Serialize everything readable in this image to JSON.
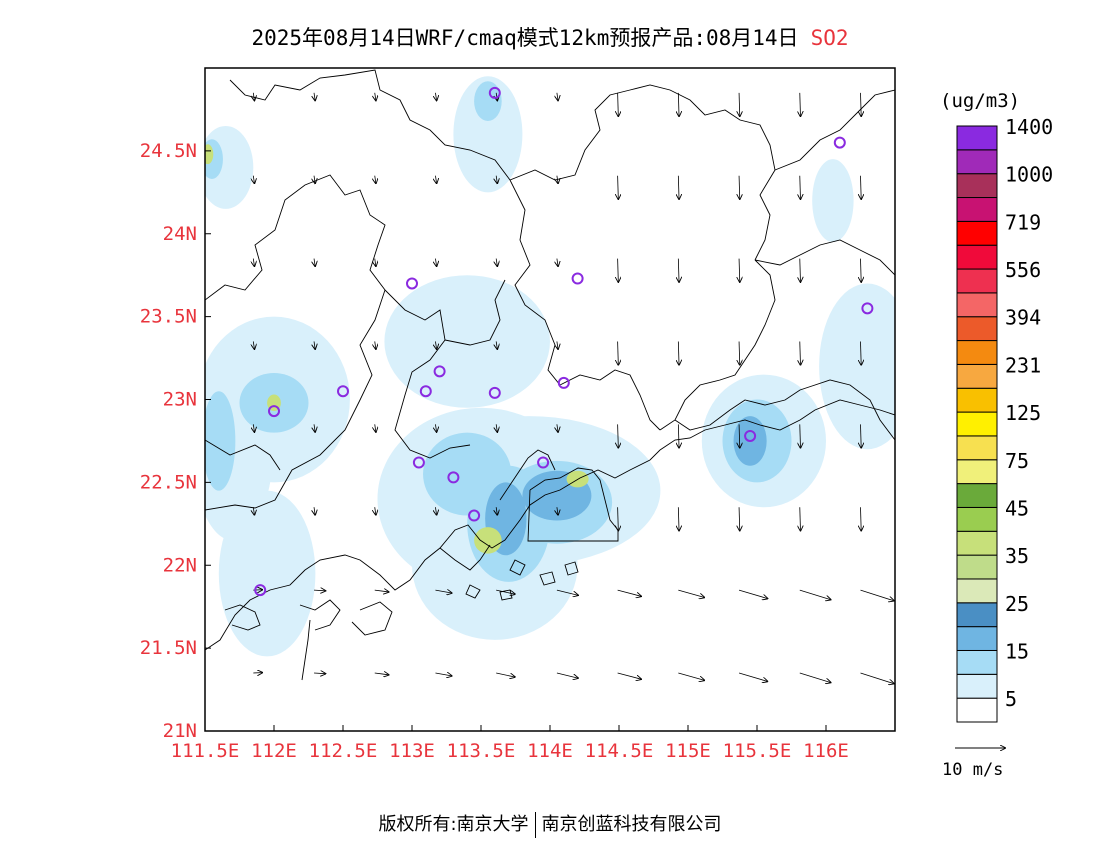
{
  "title": {
    "main": "2025年08月14日WRF/cmaq模式12km预报产品:08月14日",
    "species": "SO2"
  },
  "axes": {
    "x_ticks": [
      "111.5E",
      "112E",
      "112.5E",
      "113E",
      "113.5E",
      "114E",
      "114.5E",
      "115E",
      "115.5E",
      "116E"
    ],
    "y_ticks": [
      "24.5N",
      "24N",
      "23.5N",
      "23N",
      "22.5N",
      "22N",
      "21.5N",
      "21N"
    ],
    "tick_color": "#e8343c",
    "lon_range": [
      111.5,
      116.5
    ],
    "lat_range": [
      21,
      25
    ]
  },
  "colorbar": {
    "unit": "(ug/m3)",
    "labels": [
      "5",
      "15",
      "25",
      "35",
      "45",
      "75",
      "125",
      "231",
      "394",
      "556",
      "719",
      "1000",
      "1400"
    ],
    "colors": [
      "#ffffff",
      "#d9f0fb",
      "#a6dcf5",
      "#6fb5e2",
      "#4a8fc4",
      "#dbe9b8",
      "#bfdc8a",
      "#c7e07a",
      "#9acd50",
      "#6aaa3a",
      "#f0f07a",
      "#f7e050",
      "#fff000",
      "#f9c000",
      "#f7a840",
      "#f48a10",
      "#ec5a2a",
      "#f46666",
      "#ee3050",
      "#f00a3a",
      "#ff0000",
      "#c81272",
      "#a8305a",
      "#a02ab8",
      "#8a2ae0"
    ]
  },
  "wind_reference": {
    "label": "10 m/s"
  },
  "copyright": {
    "left": "版权所有:南京大学",
    "right": "南京创蓝科技有限公司"
  },
  "stations": [
    {
      "lon": 113.6,
      "lat": 24.85
    },
    {
      "lon": 116.1,
      "lat": 24.55
    },
    {
      "lon": 113.0,
      "lat": 23.7
    },
    {
      "lon": 114.2,
      "lat": 23.73
    },
    {
      "lon": 116.3,
      "lat": 23.55
    },
    {
      "lon": 113.2,
      "lat": 23.17
    },
    {
      "lon": 112.5,
      "lat": 23.05
    },
    {
      "lon": 113.1,
      "lat": 23.05
    },
    {
      "lon": 113.6,
      "lat": 23.04
    },
    {
      "lon": 114.1,
      "lat": 23.1
    },
    {
      "lon": 112.0,
      "lat": 22.93
    },
    {
      "lon": 115.45,
      "lat": 22.78
    },
    {
      "lon": 113.05,
      "lat": 22.62
    },
    {
      "lon": 113.3,
      "lat": 22.53
    },
    {
      "lon": 113.95,
      "lat": 22.62
    },
    {
      "lon": 113.45,
      "lat": 22.3
    },
    {
      "lon": 111.9,
      "lat": 21.85
    }
  ],
  "so2_patches": [
    {
      "lon": 113.5,
      "lat": 22.4,
      "rx": 0.75,
      "ry": 0.55,
      "level": 1
    },
    {
      "lon": 113.85,
      "lat": 22.45,
      "rx": 0.95,
      "ry": 0.45,
      "level": 1
    },
    {
      "lon": 113.6,
      "lat": 22.0,
      "rx": 0.6,
      "ry": 0.45,
      "level": 1
    },
    {
      "lon": 115.55,
      "lat": 22.75,
      "rx": 0.45,
      "ry": 0.4,
      "level": 1
    },
    {
      "lon": 112.0,
      "lat": 23.0,
      "rx": 0.55,
      "ry": 0.5,
      "level": 1
    },
    {
      "lon": 111.7,
      "lat": 22.75,
      "rx": 0.3,
      "ry": 0.6,
      "level": 1
    },
    {
      "lon": 111.95,
      "lat": 21.95,
      "rx": 0.35,
      "ry": 0.5,
      "level": 1
    },
    {
      "lon": 113.55,
      "lat": 24.6,
      "rx": 0.25,
      "ry": 0.35,
      "level": 1
    },
    {
      "lon": 113.4,
      "lat": 23.35,
      "rx": 0.6,
      "ry": 0.4,
      "level": 1
    },
    {
      "lon": 116.3,
      "lat": 23.2,
      "rx": 0.35,
      "ry": 0.5,
      "level": 1
    },
    {
      "lon": 116.05,
      "lat": 24.2,
      "rx": 0.15,
      "ry": 0.25,
      "level": 1
    },
    {
      "lon": 111.65,
      "lat": 24.4,
      "rx": 0.2,
      "ry": 0.25,
      "level": 1
    },
    {
      "lon": 113.4,
      "lat": 22.55,
      "rx": 0.32,
      "ry": 0.25,
      "level": 2
    },
    {
      "lon": 113.7,
      "lat": 22.25,
      "rx": 0.3,
      "ry": 0.35,
      "level": 2
    },
    {
      "lon": 114.05,
      "lat": 22.38,
      "rx": 0.4,
      "ry": 0.25,
      "level": 2
    },
    {
      "lon": 115.5,
      "lat": 22.75,
      "rx": 0.25,
      "ry": 0.25,
      "level": 2
    },
    {
      "lon": 112.0,
      "lat": 22.98,
      "rx": 0.25,
      "ry": 0.18,
      "level": 2
    },
    {
      "lon": 111.6,
      "lat": 22.75,
      "rx": 0.12,
      "ry": 0.3,
      "level": 2
    },
    {
      "lon": 113.55,
      "lat": 24.8,
      "rx": 0.1,
      "ry": 0.12,
      "level": 2
    },
    {
      "lon": 111.55,
      "lat": 24.45,
      "rx": 0.08,
      "ry": 0.12,
      "level": 2
    },
    {
      "lon": 113.68,
      "lat": 22.28,
      "rx": 0.15,
      "ry": 0.22,
      "level": 3
    },
    {
      "lon": 114.05,
      "lat": 22.42,
      "rx": 0.25,
      "ry": 0.15,
      "level": 3
    },
    {
      "lon": 115.45,
      "lat": 22.75,
      "rx": 0.12,
      "ry": 0.15,
      "level": 3
    },
    {
      "lon": 113.55,
      "lat": 22.15,
      "rx": 0.1,
      "ry": 0.08,
      "level": 4
    },
    {
      "lon": 114.2,
      "lat": 22.52,
      "rx": 0.08,
      "ry": 0.05,
      "level": 4
    },
    {
      "lon": 112.0,
      "lat": 22.98,
      "rx": 0.05,
      "ry": 0.05,
      "level": 4
    },
    {
      "lon": 111.52,
      "lat": 24.48,
      "rx": 0.04,
      "ry": 0.06,
      "level": 4
    }
  ]
}
